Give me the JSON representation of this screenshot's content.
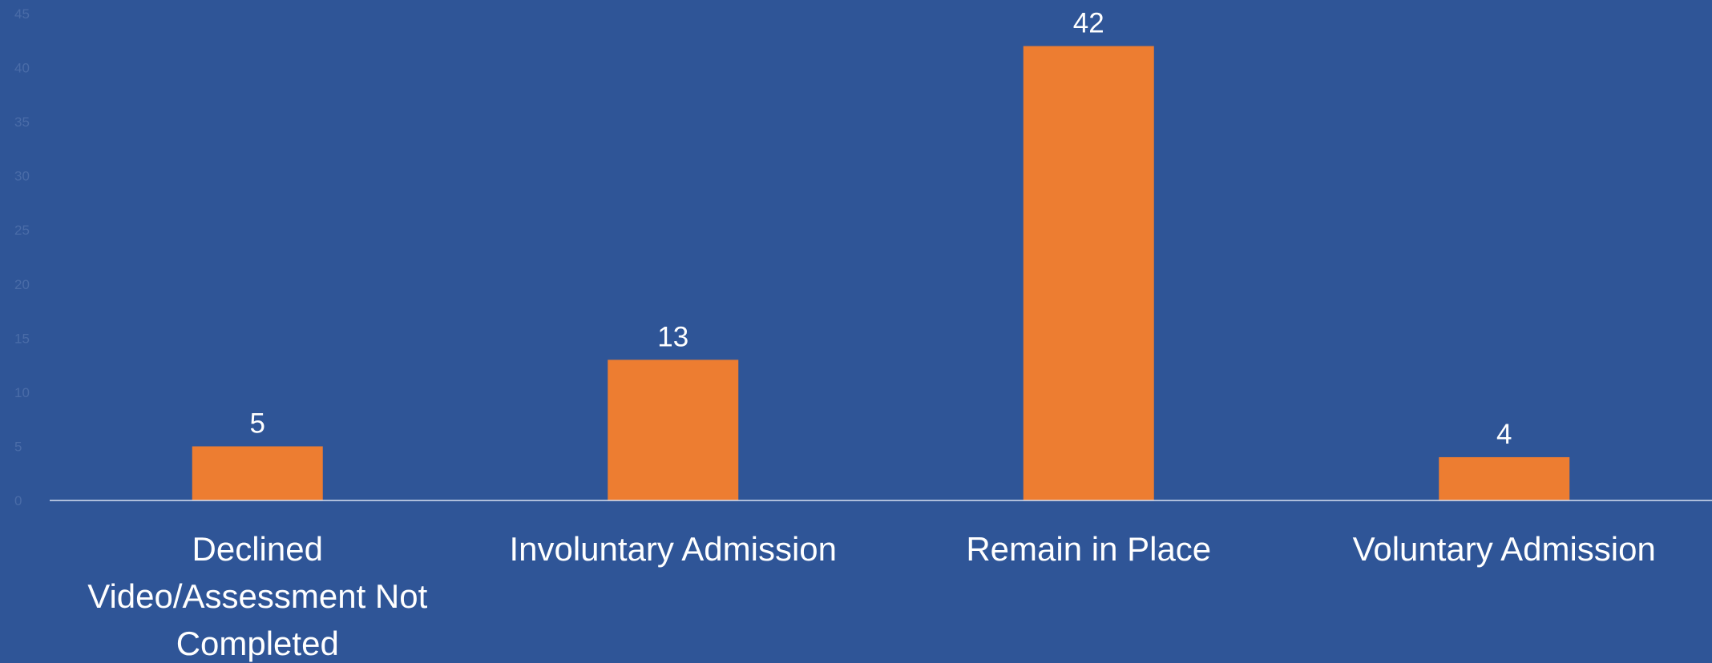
{
  "chart_data": {
    "type": "bar",
    "categories": [
      [
        "Declined",
        "Video/Assessment Not",
        "Completed"
      ],
      [
        "Involuntary Admission"
      ],
      [
        "Remain in Place"
      ],
      [
        "Voluntary Admission"
      ]
    ],
    "values": [
      5,
      13,
      42,
      4
    ],
    "data_labels": [
      "5",
      "13",
      "42",
      "4"
    ],
    "y_ticks": [
      "0",
      "5",
      "10",
      "15",
      "20",
      "25",
      "30",
      "35",
      "40",
      "45"
    ],
    "ylim": [
      0,
      45
    ],
    "grid": false,
    "legend": "none",
    "colors": {
      "background": "#2F5597",
      "bar": "#ED7D31",
      "axis": "#D9E1F2",
      "text": "#FFFFFF",
      "tick_text": "#4A6CA8"
    }
  }
}
